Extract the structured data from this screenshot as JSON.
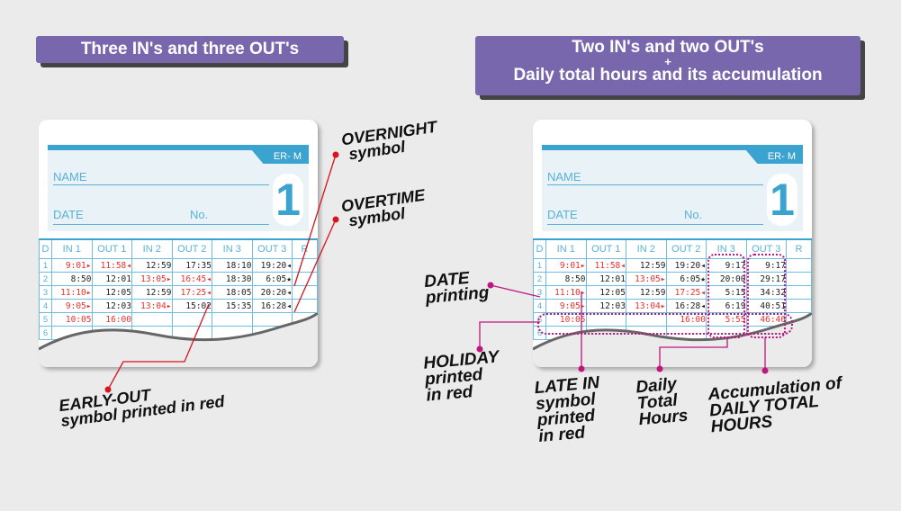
{
  "left": {
    "title": "Three IN's and three OUT's",
    "card": {
      "model": "ER- M",
      "name_label": "NAME",
      "date_label": "DATE",
      "no_label": "No.",
      "card_number": "1",
      "headers": [
        "D",
        "IN 1",
        "OUT 1",
        "IN 2",
        "OUT 2",
        "IN 3",
        "OUT 3",
        "R"
      ],
      "rows": [
        {
          "d": "1",
          "cells": [
            {
              "t": "9:01▸",
              "red": true
            },
            {
              "t": "11:58◂",
              "red": true
            },
            {
              "t": "12:59"
            },
            {
              "t": "17:35"
            },
            {
              "t": "18:10"
            },
            {
              "t": "19:20◂"
            },
            {
              "t": ""
            }
          ]
        },
        {
          "d": "2",
          "cells": [
            {
              "t": "8:50"
            },
            {
              "t": "12:01"
            },
            {
              "t": "13:05▸",
              "red": true
            },
            {
              "t": "16:45◂",
              "red": true
            },
            {
              "t": "18:30"
            },
            {
              "t": "6:05★"
            },
            {
              "t": ""
            }
          ]
        },
        {
          "d": "3",
          "cells": [
            {
              "t": "11:10▸",
              "red": true
            },
            {
              "t": "12:05"
            },
            {
              "t": "12:59"
            },
            {
              "t": "17:25◂",
              "red": true
            },
            {
              "t": "18:05"
            },
            {
              "t": "20:20◂"
            },
            {
              "t": ""
            }
          ]
        },
        {
          "d": "4",
          "cells": [
            {
              "t": "9:05▸",
              "red": true
            },
            {
              "t": "12:03"
            },
            {
              "t": "13:04▸",
              "red": true
            },
            {
              "t": "15:02"
            },
            {
              "t": "15:35"
            },
            {
              "t": "16:28◂"
            },
            {
              "t": ""
            }
          ]
        },
        {
          "d": "5",
          "cells": [
            {
              "t": "10:05",
              "red": true
            },
            {
              "t": "16:00",
              "red": true
            },
            {
              "t": ""
            },
            {
              "t": ""
            },
            {
              "t": ""
            },
            {
              "t": ""
            },
            {
              "t": ""
            }
          ]
        },
        {
          "d": "6",
          "cells": [
            {
              "t": ""
            },
            {
              "t": ""
            },
            {
              "t": ""
            },
            {
              "t": ""
            },
            {
              "t": ""
            },
            {
              "t": ""
            },
            {
              "t": ""
            }
          ]
        }
      ]
    },
    "annotations": {
      "overnight": [
        "OVERNIGHT",
        "symbol"
      ],
      "overtime": [
        "OVERTIME",
        "symbol"
      ],
      "early_out": [
        "EARLY-OUT",
        "symbol printed in red"
      ]
    }
  },
  "right": {
    "title_line1": "Two IN's and two OUT's",
    "title_plus": "+",
    "title_line2": "Daily total hours and its accumulation",
    "card": {
      "model": "ER- M",
      "name_label": "NAME",
      "date_label": "DATE",
      "no_label": "No.",
      "card_number": "1",
      "headers": [
        "D",
        "IN 1",
        "OUT 1",
        "IN 2",
        "OUT 2",
        "IN 3",
        "OUT 3",
        "R"
      ],
      "rows": [
        {
          "d": "1",
          "cells": [
            {
              "t": "9:01▸",
              "red": true
            },
            {
              "t": "11:58◂",
              "red": true
            },
            {
              "t": "12:59"
            },
            {
              "t": "19:20◂"
            },
            {
              "t": "9:17"
            },
            {
              "t": "9:17"
            },
            {
              "t": ""
            }
          ]
        },
        {
          "d": "2",
          "cells": [
            {
              "t": "8:50"
            },
            {
              "t": "12:01"
            },
            {
              "t": "13:05▸",
              "red": true
            },
            {
              "t": "6:05★"
            },
            {
              "t": "20:00"
            },
            {
              "t": "29:17"
            },
            {
              "t": ""
            }
          ]
        },
        {
          "d": "3",
          "cells": [
            {
              "t": "11:10▸",
              "red": true
            },
            {
              "t": "12:05"
            },
            {
              "t": "12:59"
            },
            {
              "t": "17:25◂",
              "red": true
            },
            {
              "t": "5:15"
            },
            {
              "t": "34:32"
            },
            {
              "t": ""
            }
          ]
        },
        {
          "d": "4",
          "cells": [
            {
              "t": "9:05▸",
              "red": true
            },
            {
              "t": "12:03"
            },
            {
              "t": "13:04▸",
              "red": true
            },
            {
              "t": "16:28◂"
            },
            {
              "t": "6:19"
            },
            {
              "t": "40:51"
            },
            {
              "t": ""
            }
          ]
        },
        {
          "d": "5",
          "cells": [
            {
              "t": "10:05",
              "red": true
            },
            {
              "t": ""
            },
            {
              "t": ""
            },
            {
              "t": "16:00",
              "red": true
            },
            {
              "t": "5:55",
              "red": true
            },
            {
              "t": "46:46",
              "red": true
            },
            {
              "t": ""
            }
          ]
        },
        {
          "d": "6",
          "cells": [
            {
              "t": ""
            },
            {
              "t": ""
            },
            {
              "t": ""
            },
            {
              "t": ""
            },
            {
              "t": ""
            },
            {
              "t": ""
            },
            {
              "t": ""
            }
          ]
        }
      ]
    },
    "annotations": {
      "date": [
        "DATE",
        "printing"
      ],
      "holiday": [
        "HOLIDAY",
        "printed",
        "in red"
      ],
      "late_in": [
        "LATE IN",
        "symbol",
        "printed",
        "in red"
      ],
      "daily": [
        "Daily",
        "Total",
        "Hours"
      ],
      "accum": [
        "Accumulation of",
        "DAILY TOTAL",
        "HOURS"
      ]
    }
  },
  "colors": {
    "pill": "#7867ad",
    "card_blue": "#3ba3cf",
    "red_annotation": "#d8141c",
    "magenta_annotation": "#c0157f",
    "red_print": "#e8322a"
  }
}
